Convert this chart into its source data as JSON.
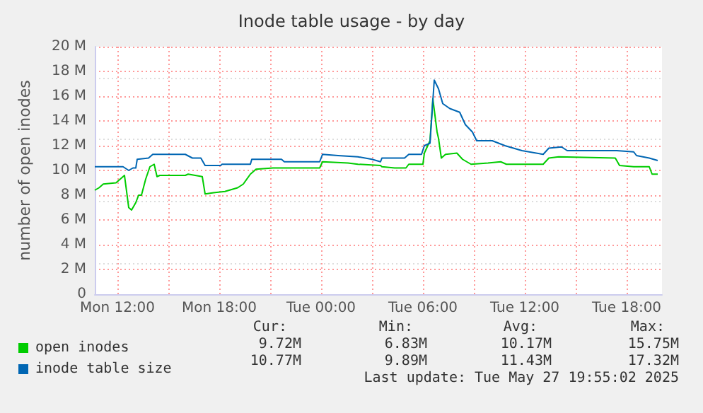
{
  "chart_data": {
    "type": "line",
    "title": "Inode table usage - by day",
    "ylabel": "number of open inodes",
    "xlim": [
      "2025-05-26T10:40",
      "2025-05-27T20:05"
    ],
    "xticks": [
      {
        "value": "2025-05-26T12:00",
        "label": "Mon 12:00"
      },
      {
        "value": "2025-05-26T15:00",
        "label": null
      },
      {
        "value": "2025-05-26T18:00",
        "label": "Mon 18:00"
      },
      {
        "value": "2025-05-26T21:00",
        "label": null
      },
      {
        "value": "2025-05-27T00:00",
        "label": "Tue 00:00"
      },
      {
        "value": "2025-05-27T03:00",
        "label": null
      },
      {
        "value": "2025-05-27T06:00",
        "label": "Tue 06:00"
      },
      {
        "value": "2025-05-27T09:00",
        "label": null
      },
      {
        "value": "2025-05-27T12:00",
        "label": "Tue 12:00"
      },
      {
        "value": "2025-05-27T15:00",
        "label": null
      },
      {
        "value": "2025-05-27T18:00",
        "label": "Tue 18:00"
      }
    ],
    "ylim": [
      0,
      20
    ],
    "yticks": [
      0,
      {
        "value": 2,
        "label": "2 M"
      },
      {
        "value": 4,
        "label": "4 M"
      },
      {
        "value": 6,
        "label": "6 M"
      },
      {
        "value": 8,
        "label": "8 M"
      },
      {
        "value": 10,
        "label": "10 M"
      },
      {
        "value": 12,
        "label": "12 M"
      },
      {
        "value": 14,
        "label": "14 M"
      },
      {
        "value": 16,
        "label": "16 M"
      },
      {
        "value": 18,
        "label": "18 M"
      },
      {
        "value": 20,
        "label": "20 M"
      }
    ],
    "grid": true,
    "legend": "bottom left",
    "marker": "none",
    "line_style": "solid",
    "series": [
      {
        "name": "open inodes",
        "color": "#00cc00",
        "x": [
          "2025-05-26T10:40",
          "2025-05-26T10:55",
          "2025-05-26T11:10",
          "2025-05-26T11:55",
          "2025-05-26T12:25",
          "2025-05-26T12:40",
          "2025-05-26T12:50",
          "2025-05-26T13:05",
          "2025-05-26T13:15",
          "2025-05-26T13:25",
          "2025-05-26T13:40",
          "2025-05-26T13:55",
          "2025-05-26T14:10",
          "2025-05-26T14:20",
          "2025-05-26T14:30",
          "2025-05-26T16:00",
          "2025-05-26T16:10",
          "2025-05-26T17:00",
          "2025-05-26T17:10",
          "2025-05-26T17:40",
          "2025-05-26T18:20",
          "2025-05-26T19:05",
          "2025-05-26T19:25",
          "2025-05-26T19:50",
          "2025-05-26T20:10",
          "2025-05-26T21:10",
          "2025-05-26T23:55",
          "2025-05-27T00:05",
          "2025-05-27T01:35",
          "2025-05-27T02:10",
          "2025-05-27T03:30",
          "2025-05-27T03:35",
          "2025-05-27T04:20",
          "2025-05-27T05:00",
          "2025-05-27T05:10",
          "2025-05-27T06:00",
          "2025-05-27T06:05",
          "2025-05-27T06:25",
          "2025-05-27T06:35",
          "2025-05-27T06:50",
          "2025-05-27T06:55",
          "2025-05-27T07:05",
          "2025-05-27T07:20",
          "2025-05-27T08:00",
          "2025-05-27T08:20",
          "2025-05-27T08:50",
          "2025-05-27T09:50",
          "2025-05-27T10:35",
          "2025-05-27T10:55",
          "2025-05-27T13:05",
          "2025-05-27T13:25",
          "2025-05-27T14:00",
          "2025-05-27T17:20",
          "2025-05-27T17:35",
          "2025-05-27T18:25",
          "2025-05-27T19:20",
          "2025-05-27T19:30",
          "2025-05-27T19:50"
        ],
        "values": [
          8.4,
          8.6,
          8.9,
          9.0,
          9.6,
          7.0,
          6.8,
          7.4,
          8.0,
          8.0,
          9.3,
          10.3,
          10.5,
          9.5,
          9.6,
          9.6,
          9.7,
          9.5,
          8.1,
          8.2,
          8.3,
          8.6,
          8.9,
          9.7,
          10.1,
          10.2,
          10.2,
          10.7,
          10.6,
          10.5,
          10.4,
          10.3,
          10.2,
          10.2,
          10.5,
          10.5,
          11.4,
          12.4,
          15.8,
          13.1,
          12.6,
          11.0,
          11.3,
          11.4,
          10.9,
          10.5,
          10.6,
          10.7,
          10.5,
          10.5,
          11.0,
          11.1,
          11.0,
          10.4,
          10.3,
          10.3,
          9.7,
          9.7
        ]
      },
      {
        "name": "inode table size",
        "color": "#0066b3",
        "x": [
          "2025-05-26T10:40",
          "2025-05-26T12:20",
          "2025-05-26T12:40",
          "2025-05-26T12:55",
          "2025-05-26T13:05",
          "2025-05-26T13:10",
          "2025-05-26T13:50",
          "2025-05-26T14:05",
          "2025-05-26T15:55",
          "2025-05-26T16:00",
          "2025-05-26T16:25",
          "2025-05-26T16:55",
          "2025-05-26T17:10",
          "2025-05-26T18:05",
          "2025-05-26T18:10",
          "2025-05-26T19:50",
          "2025-05-26T19:55",
          "2025-05-26T21:40",
          "2025-05-26T21:50",
          "2025-05-26T23:55",
          "2025-05-27T00:05",
          "2025-05-27T01:00",
          "2025-05-27T02:10",
          "2025-05-27T03:00",
          "2025-05-27T03:30",
          "2025-05-27T03:35",
          "2025-05-27T04:55",
          "2025-05-27T05:10",
          "2025-05-27T05:55",
          "2025-05-27T06:05",
          "2025-05-27T06:25",
          "2025-05-27T06:40",
          "2025-05-27T06:55",
          "2025-05-27T07:10",
          "2025-05-27T07:35",
          "2025-05-27T08:10",
          "2025-05-27T08:30",
          "2025-05-27T08:55",
          "2025-05-27T09:10",
          "2025-05-27T10:05",
          "2025-05-27T10:50",
          "2025-05-27T11:50",
          "2025-05-27T13:05",
          "2025-05-27T13:25",
          "2025-05-27T14:10",
          "2025-05-27T14:30",
          "2025-05-27T17:25",
          "2025-05-27T18:25",
          "2025-05-27T18:35",
          "2025-05-27T19:20",
          "2025-05-27T19:50"
        ],
        "values": [
          10.3,
          10.3,
          10.0,
          10.2,
          10.2,
          10.9,
          11.0,
          11.3,
          11.3,
          11.3,
          11.0,
          11.0,
          10.4,
          10.4,
          10.5,
          10.5,
          10.9,
          10.9,
          10.7,
          10.7,
          11.3,
          11.2,
          11.1,
          10.9,
          10.7,
          11.0,
          11.0,
          11.3,
          11.3,
          12.0,
          12.2,
          17.3,
          16.6,
          15.4,
          15.0,
          14.7,
          13.7,
          13.1,
          12.4,
          12.4,
          12.0,
          11.6,
          11.3,
          11.8,
          11.9,
          11.6,
          11.6,
          11.5,
          11.2,
          11.0,
          10.8
        ]
      }
    ],
    "annotations": [
      "Cur:",
      "Min:",
      "Avg:",
      "Max:",
      "9.72M",
      "6.83M",
      "10.17M",
      "15.75M",
      "10.77M",
      "9.89M",
      "11.43M",
      "17.32M",
      "Last update: Tue May 27 19:55:02 2025"
    ]
  }
}
